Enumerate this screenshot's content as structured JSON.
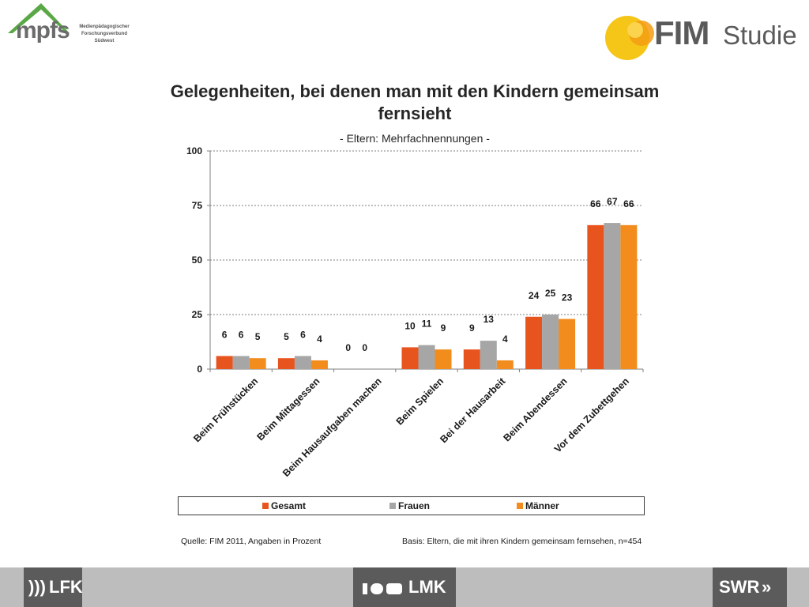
{
  "logos": {
    "left_name": "mpfs",
    "left_lines": [
      "Medienpädagogischer",
      "Forschungsverbund",
      "Südwest"
    ],
    "right_name": "FIM",
    "right_suffix": "Studie",
    "brand_green": "#5aa845",
    "brand_yellow": "#f5c518",
    "brand_gray": "#5a5a5a"
  },
  "footer": {
    "lfk": "LFK",
    "lmk": "LMK",
    "swr": "SWR"
  },
  "chart_data": {
    "type": "bar",
    "title": "Gelegenheiten, bei denen man mit den Kindern gemeinsam fernsieht",
    "subtitle": "- Eltern: Mehrfachnennungen -",
    "categories": [
      "Beim Frühstücken",
      "Beim Mittagessen",
      "Beim Hausaufgaben  machen",
      "Beim Spielen",
      "Bei der Hausarbeit",
      "Beim Abendessen",
      "Vor dem Zubettgehen"
    ],
    "series": [
      {
        "name": "Gesamt",
        "color": "#e8541e",
        "values": [
          6,
          5,
          0,
          10,
          9,
          24,
          66
        ]
      },
      {
        "name": "Frauen",
        "color": "#a6a6a6",
        "values": [
          6,
          6,
          0,
          11,
          13,
          25,
          67
        ]
      },
      {
        "name": "Männer",
        "color": "#f28c1d",
        "values": [
          5,
          4,
          null,
          9,
          4,
          23,
          66
        ]
      }
    ],
    "ylim": [
      0,
      100
    ],
    "yticks": [
      0,
      25,
      50,
      75,
      100
    ],
    "grid": true,
    "legend_position": "bottom",
    "source": "Quelle: FIM 2011,  Angaben in Prozent",
    "basis": "Basis: Eltern, die mit ihren Kindern gemeinsam fernsehen, n=454"
  }
}
